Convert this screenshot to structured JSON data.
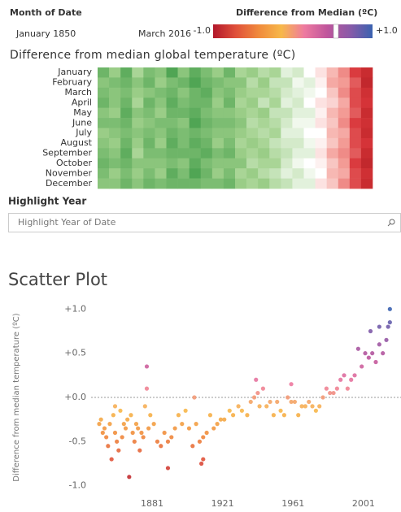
{
  "filter": {
    "label": "Month of Date",
    "start": "January 1850",
    "end": "March 2016"
  },
  "legend": {
    "title": "Difference from Median (ºC)",
    "min_label": "-1.0",
    "max_label": "+1.0",
    "colors": [
      "#b2182b",
      "#e0503a",
      "#f08a3c",
      "#f7b84a",
      "#ee7aa0",
      "#c0569c",
      "#8a5aa8",
      "#3a62b0"
    ]
  },
  "heatmap": {
    "title": "Difference from median global temperature (ºC)",
    "row_labels": [
      "January",
      "February",
      "March",
      "April",
      "May",
      "June",
      "July",
      "August",
      "September",
      "October",
      "November",
      "December"
    ],
    "colors": [
      "#1a7a2e",
      "#3c9a46",
      "#9fd08a",
      "#ffffff",
      "#f4a09a",
      "#d9363a",
      "#b01c22"
    ],
    "values": [
      [
        -0.5,
        -0.35,
        -0.55,
        -0.3,
        -0.45,
        -0.4,
        -0.6,
        -0.4,
        -0.55,
        -0.45,
        -0.35,
        -0.5,
        -0.3,
        -0.35,
        -0.25,
        -0.3,
        -0.1,
        -0.15,
        0.0,
        0.1,
        0.25,
        0.4,
        0.65,
        0.8
      ],
      [
        -0.4,
        -0.45,
        -0.5,
        -0.4,
        -0.5,
        -0.35,
        -0.45,
        -0.5,
        -0.6,
        -0.5,
        -0.45,
        -0.4,
        -0.4,
        -0.25,
        -0.35,
        -0.2,
        -0.2,
        -0.05,
        -0.1,
        0.05,
        0.3,
        0.35,
        0.55,
        0.85
      ],
      [
        -0.45,
        -0.4,
        -0.45,
        -0.35,
        -0.4,
        -0.45,
        -0.5,
        -0.4,
        -0.5,
        -0.55,
        -0.4,
        -0.45,
        -0.35,
        -0.3,
        -0.3,
        -0.25,
        -0.15,
        -0.1,
        -0.05,
        0.0,
        0.2,
        0.4,
        0.6,
        0.75
      ],
      [
        -0.5,
        -0.4,
        -0.5,
        -0.3,
        -0.5,
        -0.4,
        -0.55,
        -0.45,
        -0.5,
        -0.5,
        -0.35,
        -0.5,
        -0.3,
        -0.35,
        -0.2,
        -0.3,
        -0.1,
        -0.15,
        0.0,
        0.1,
        0.15,
        0.3,
        0.6,
        0.7
      ],
      [
        -0.4,
        -0.35,
        -0.55,
        -0.4,
        -0.45,
        -0.35,
        -0.5,
        -0.5,
        -0.55,
        -0.45,
        -0.4,
        -0.4,
        -0.35,
        -0.3,
        -0.35,
        -0.2,
        -0.2,
        -0.1,
        -0.1,
        0.05,
        0.25,
        0.35,
        0.55,
        0.8
      ],
      [
        -0.45,
        -0.45,
        -0.5,
        -0.35,
        -0.4,
        -0.45,
        -0.45,
        -0.4,
        -0.6,
        -0.5,
        -0.45,
        -0.45,
        -0.4,
        -0.25,
        -0.3,
        -0.25,
        -0.15,
        -0.05,
        -0.05,
        0.1,
        0.2,
        0.4,
        0.65,
        0.75
      ],
      [
        -0.35,
        -0.4,
        -0.45,
        -0.4,
        -0.45,
        -0.4,
        -0.5,
        -0.45,
        -0.5,
        -0.45,
        -0.4,
        -0.4,
        -0.35,
        -0.3,
        -0.25,
        -0.3,
        -0.1,
        -0.1,
        0.0,
        0.0,
        0.25,
        0.3,
        0.6,
        0.8
      ],
      [
        -0.4,
        -0.35,
        -0.5,
        -0.35,
        -0.5,
        -0.35,
        -0.55,
        -0.45,
        -0.55,
        -0.5,
        -0.35,
        -0.45,
        -0.3,
        -0.35,
        -0.3,
        -0.2,
        -0.15,
        -0.15,
        -0.05,
        0.05,
        0.2,
        0.35,
        0.6,
        0.7
      ],
      [
        -0.45,
        -0.4,
        -0.55,
        -0.3,
        -0.45,
        -0.45,
        -0.5,
        -0.5,
        -0.5,
        -0.55,
        -0.45,
        -0.5,
        -0.35,
        -0.3,
        -0.35,
        -0.25,
        -0.2,
        -0.1,
        -0.1,
        0.1,
        0.3,
        0.4,
        0.55,
        0.8
      ],
      [
        -0.5,
        -0.45,
        -0.5,
        -0.4,
        -0.4,
        -0.4,
        -0.45,
        -0.4,
        -0.55,
        -0.45,
        -0.4,
        -0.4,
        -0.4,
        -0.25,
        -0.3,
        -0.3,
        -0.15,
        -0.05,
        0.0,
        0.05,
        0.2,
        0.35,
        0.65,
        0.85
      ],
      [
        -0.45,
        -0.35,
        -0.45,
        -0.35,
        -0.45,
        -0.35,
        -0.55,
        -0.45,
        -0.6,
        -0.5,
        -0.35,
        -0.45,
        -0.3,
        -0.35,
        -0.25,
        -0.2,
        -0.1,
        -0.15,
        -0.05,
        0.0,
        0.25,
        0.3,
        0.6,
        0.75
      ],
      [
        -0.4,
        -0.4,
        -0.5,
        -0.4,
        -0.5,
        -0.45,
        -0.5,
        -0.5,
        -0.5,
        -0.45,
        -0.45,
        -0.5,
        -0.35,
        -0.3,
        -0.35,
        -0.25,
        -0.2,
        -0.1,
        -0.1,
        0.1,
        0.2,
        0.4,
        0.6,
        0.8
      ]
    ]
  },
  "highlight": {
    "label": "Highlight Year",
    "placeholder": "Highlight Year of Date"
  },
  "chart_data": {
    "type": "scatter",
    "title": "Scatter Plot",
    "y_label": "Difference from median temperature (ºC)",
    "xlim": [
      1845,
      2020
    ],
    "xticks": [
      1881,
      1921,
      1961,
      2001
    ],
    "ylim": [
      -1.15,
      1.15
    ],
    "yticks": [
      {
        "value": 1.0,
        "label": "+1.0"
      },
      {
        "value": 0.5,
        "label": "+0.5"
      },
      {
        "value": 0.0,
        "label": "+0.0"
      },
      {
        "value": -0.5,
        "label": "-0.5"
      },
      {
        "value": -1.0,
        "label": "-1.0"
      }
    ],
    "x": [
      1851,
      1852,
      1853,
      1854,
      1855,
      1856,
      1857,
      1858,
      1859,
      1860,
      1861,
      1862,
      1863,
      1864,
      1865,
      1866,
      1867,
      1868,
      1869,
      1870,
      1871,
      1872,
      1873,
      1874,
      1875,
      1876,
      1877,
      1878,
      1879,
      1880,
      1882,
      1884,
      1886,
      1888,
      1890,
      1892,
      1894,
      1896,
      1898,
      1900,
      1902,
      1904,
      1906,
      1908,
      1909,
      1910,
      1912,
      1914,
      1916,
      1918,
      1920,
      1922,
      1925,
      1927,
      1930,
      1932,
      1935,
      1937,
      1939,
      1941,
      1942,
      1944,
      1946,
      1948,
      1950,
      1952,
      1954,
      1956,
      1958,
      1960,
      1962,
      1964,
      1966,
      1968,
      1970,
      1972,
      1974,
      1976,
      1978,
      1980,
      1982,
      1984,
      1986,
      1988,
      1990,
      1992,
      1994,
      1996,
      1998,
      2000,
      2002,
      2004,
      2006,
      2008,
      2010,
      2012,
      2014,
      2015,
      2016,
      1860,
      1878,
      1890,
      1910,
      1905,
      1940,
      1960,
      2005,
      2010,
      2016
    ],
    "y": [
      -0.3,
      -0.25,
      -0.4,
      -0.35,
      -0.45,
      -0.55,
      -0.3,
      -0.7,
      -0.2,
      -0.4,
      -0.5,
      -0.6,
      -0.15,
      -0.45,
      -0.3,
      -0.35,
      -0.25,
      -0.9,
      -0.2,
      -0.4,
      -0.5,
      -0.3,
      -0.35,
      -0.6,
      -0.4,
      -0.45,
      -0.1,
      0.1,
      -0.35,
      -0.2,
      -0.3,
      -0.5,
      -0.55,
      -0.4,
      -0.5,
      -0.45,
      -0.35,
      -0.2,
      -0.3,
      -0.15,
      -0.35,
      -0.55,
      -0.3,
      -0.5,
      -0.75,
      -0.45,
      -0.4,
      -0.2,
      -0.35,
      -0.3,
      -0.25,
      -0.25,
      -0.15,
      -0.2,
      -0.1,
      -0.15,
      -0.2,
      -0.05,
      0.0,
      0.05,
      -0.1,
      0.1,
      -0.1,
      -0.05,
      -0.2,
      -0.05,
      -0.15,
      -0.2,
      0.0,
      -0.05,
      -0.05,
      -0.2,
      -0.1,
      -0.1,
      -0.05,
      -0.1,
      -0.15,
      -0.1,
      0.0,
      0.1,
      0.05,
      0.05,
      0.1,
      0.2,
      0.25,
      0.1,
      0.2,
      0.25,
      0.55,
      0.35,
      0.5,
      0.45,
      0.5,
      0.4,
      0.6,
      0.5,
      0.65,
      0.8,
      1.0,
      -0.1,
      0.35,
      -0.8,
      -0.7,
      0.0,
      0.2,
      0.15,
      0.75,
      0.8,
      0.85
    ]
  }
}
